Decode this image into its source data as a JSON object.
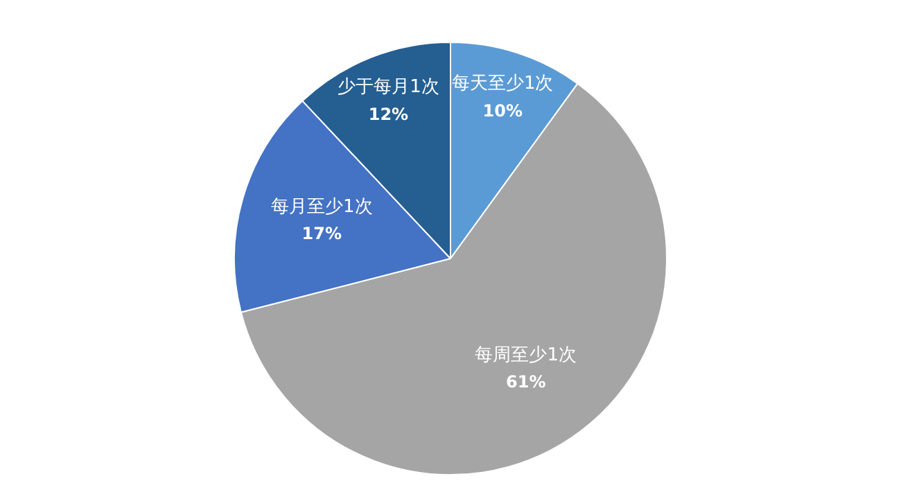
{
  "chart_data": {
    "type": "pie",
    "categories": [
      "每天至少1次",
      "每周至少1次",
      "每月至少1次",
      "少于每月1次"
    ],
    "values": [
      10,
      61,
      17,
      12
    ],
    "colors": [
      "#5b9bd5",
      "#a5a5a5",
      "#4472c4",
      "#255e91"
    ],
    "value_labels": [
      "10%",
      "61%",
      "17%",
      "12%"
    ],
    "legend": false
  }
}
